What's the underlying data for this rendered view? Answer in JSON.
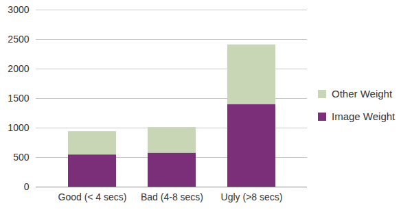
{
  "chart_data": {
    "type": "bar",
    "stacked": true,
    "categories": [
      "Good (< 4 secs)",
      "Bad (4-8 secs)",
      "Ugly (>8 secs)"
    ],
    "series": [
      {
        "name": "Image Weight",
        "color": "#7a2f78",
        "values": [
          545,
          575,
          1400
        ]
      },
      {
        "name": "Other Weight",
        "color": "#c8d6b6",
        "values": [
          395,
          435,
          1010
        ]
      }
    ],
    "ylim": [
      0,
      3000
    ],
    "yticks": [
      0,
      500,
      1000,
      1500,
      2000,
      2500,
      3000
    ],
    "grid": true,
    "legend": "right"
  }
}
